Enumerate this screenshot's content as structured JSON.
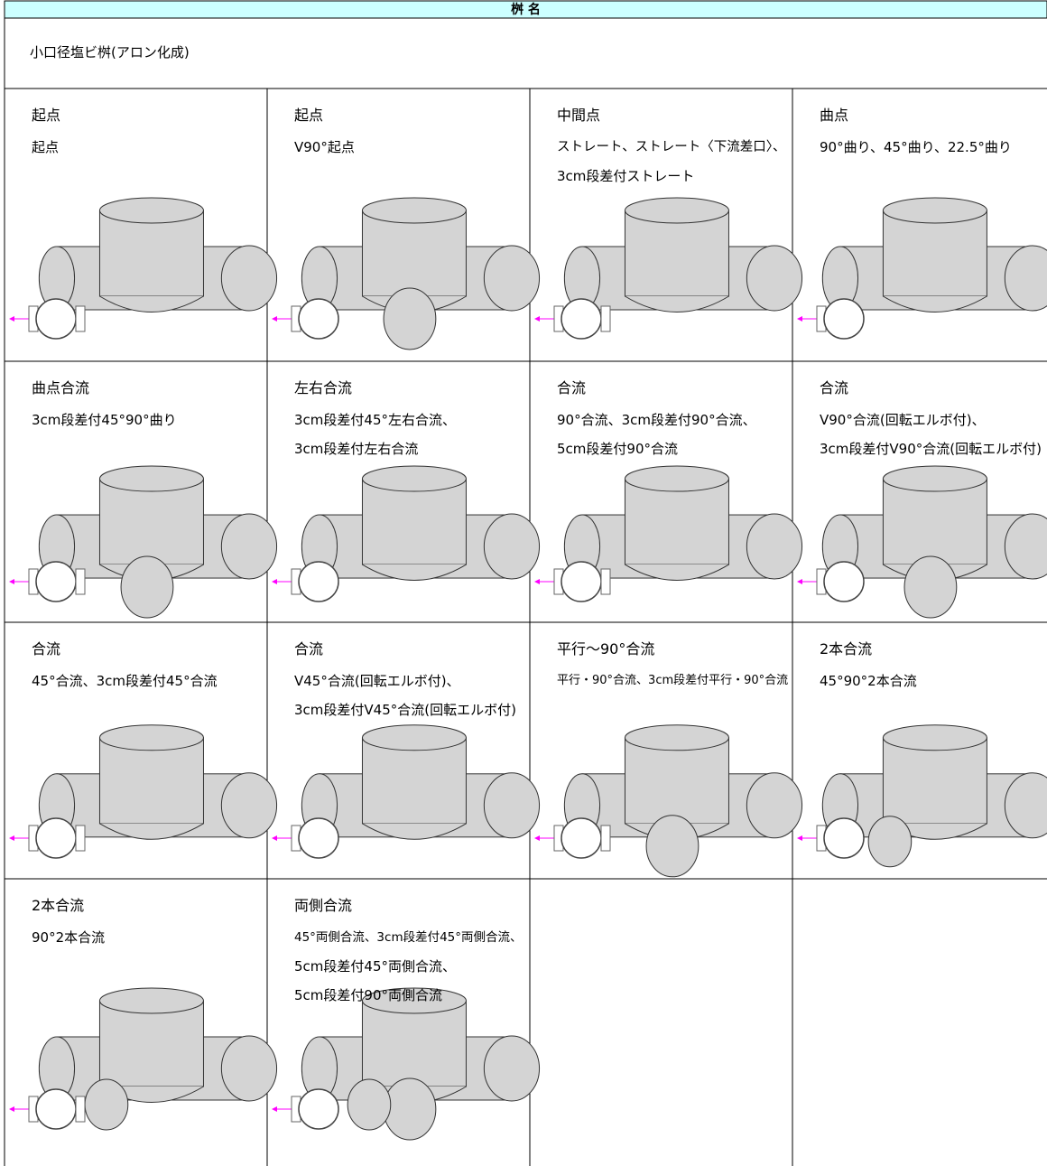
{
  "header": {
    "title": "桝 名"
  },
  "subheader": "小口径塩ビ桝(アロン化成)",
  "cells": [
    {
      "title": "起点",
      "lines": [
        "起点"
      ]
    },
    {
      "title": "起点",
      "lines": [
        "V90°起点"
      ]
    },
    {
      "title": "中間点",
      "lines": [
        "ストレート、ストレート〈下流差口〉、",
        "3cm段差付ストレート"
      ]
    },
    {
      "title": "曲点",
      "lines": [
        "90°曲り、45°曲り、22.5°曲り"
      ]
    },
    {
      "title": "曲点合流",
      "lines": [
        "3cm段差付45°90°曲り"
      ]
    },
    {
      "title": "左右合流",
      "lines": [
        "3cm段差付45°左右合流、",
        "3cm段差付左右合流"
      ]
    },
    {
      "title": "合流",
      "lines": [
        "90°合流、3cm段差付90°合流、",
        "5cm段差付90°合流"
      ]
    },
    {
      "title": "合流",
      "lines": [
        "V90°合流(回転エルボ付)、",
        "3cm段差付V90°合流(回転エルボ付)"
      ]
    },
    {
      "title": "合流",
      "lines": [
        "45°合流、3cm段差付45°合流"
      ]
    },
    {
      "title": "合流",
      "lines": [
        "V45°合流(回転エルボ付)、",
        "3cm段差付V45°合流(回転エルボ付)"
      ]
    },
    {
      "title": "平行～90°合流",
      "lines": [
        "平行・90°合流、3cm段差付平行・90°合流"
      ]
    },
    {
      "title": "2本合流",
      "lines": [
        "45°90°2本合流"
      ]
    },
    {
      "title": "2本合流",
      "lines": [
        "90°2本合流"
      ]
    },
    {
      "title": "両側合流",
      "lines": [
        "45°両側合流、3cm段差付45°両側合流、",
        "5cm段差付45°両側合流、",
        "5cm段差付90°両側合流"
      ]
    }
  ]
}
